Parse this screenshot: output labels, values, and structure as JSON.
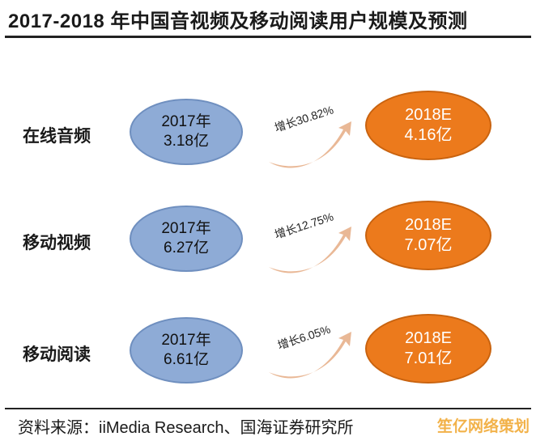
{
  "title": "2017-2018 年中国音视频及移动阅读用户规模及预测",
  "rows": [
    {
      "label": "在线音频",
      "base_year": "2017年",
      "base_value": "3.18亿",
      "growth": "增长30.82%",
      "forecast_year": "2018E",
      "forecast_value": "4.16亿"
    },
    {
      "label": "移动视频",
      "base_year": "2017年",
      "base_value": "6.27亿",
      "growth": "增长12.75%",
      "forecast_year": "2018E",
      "forecast_value": "7.07亿"
    },
    {
      "label": "移动阅读",
      "base_year": "2017年",
      "base_value": "6.61亿",
      "growth": "增长6.05%",
      "forecast_year": "2018E",
      "forecast_value": "7.01亿"
    }
  ],
  "footer": "资料来源：iiMedia Research、国海证券研究所",
  "watermark": "笙亿网络策划",
  "colors": {
    "base_ellipse": "#8eabd6",
    "forecast_ellipse": "#ec7a1c",
    "arrow": "#e9b896"
  }
}
